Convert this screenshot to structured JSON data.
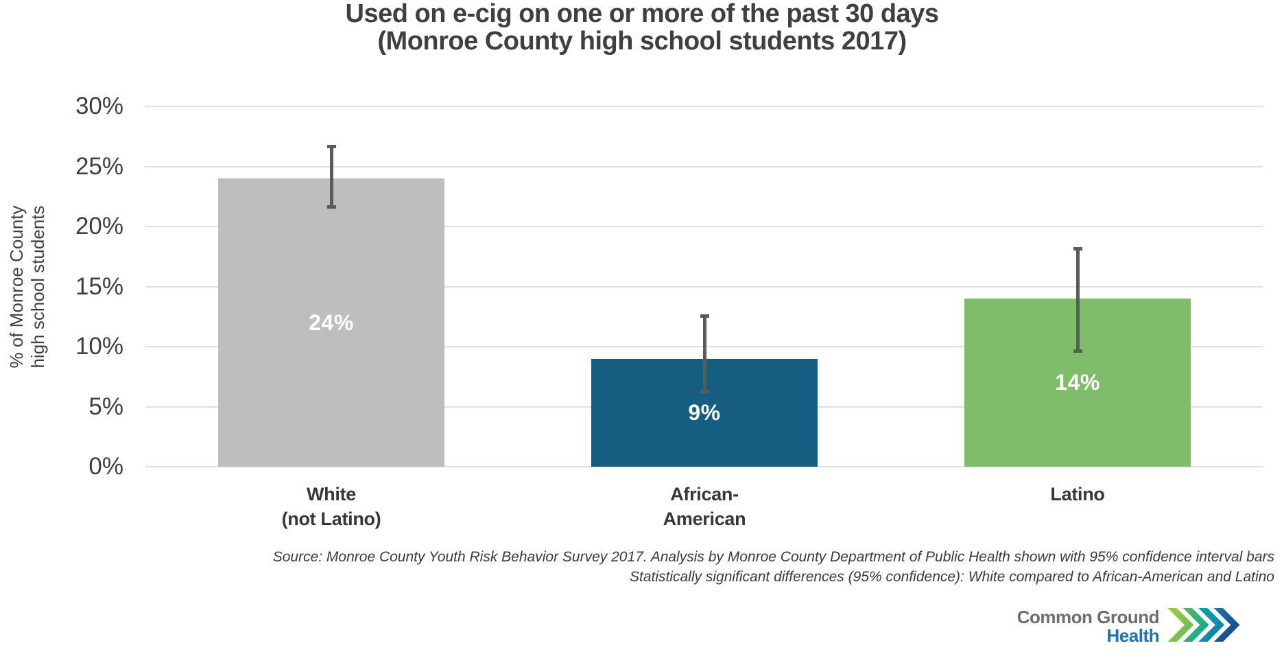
{
  "header": {
    "title_line1": "Used on e-cig on one or more of the past 30 days",
    "title_line2": "(Monroe County high school students 2017)"
  },
  "chart_data": {
    "type": "bar",
    "title": "Used on e-cig on one or more of the past 30 days (Monroe County high school students 2017)",
    "ylabel": "% of Monroe County high school students",
    "ylabel_lines": [
      "% of Monroe County",
      "high school students"
    ],
    "ylim": [
      0,
      30
    ],
    "ytick_step": 5,
    "ytick_suffix": "%",
    "grid": "horizontal",
    "legend": "none",
    "error_bars": "95% confidence interval",
    "error_bar_color": "#595b5d",
    "gridline_color": "#e0e0e0",
    "categories": [
      {
        "label_lines": [
          "White",
          "(not Latino)"
        ],
        "label": "White (not Latino)",
        "value": 24,
        "display": "24%",
        "ci_low": 21.5,
        "ci_high": 26.8,
        "color": "#bcbec0"
      },
      {
        "label_lines": [
          "African-",
          "American"
        ],
        "label": "African-American",
        "value": 9,
        "display": "9%",
        "ci_low": 6.1,
        "ci_high": 12.7,
        "color": "#155d81"
      },
      {
        "label_lines": [
          "Latino"
        ],
        "label": "Latino",
        "value": 14,
        "display": "14%",
        "ci_low": 9.5,
        "ci_high": 18.3,
        "color": "#80bd6a"
      }
    ]
  },
  "footnote": {
    "line1": "Source: Monroe County Youth Risk Behavior Survey 2017.  Analysis by Monroe County Department of Public Health shown with 95% confidence interval bars",
    "line2": "Statistically significant differences (95% confidence): White compared to African-American and Latino"
  },
  "logo": {
    "line1": "Common Ground",
    "line2": "Health",
    "line1_color": "#6d6e71",
    "line2_color": "#1f72ad",
    "chevron_colors": [
      "#a6ce39",
      "#5cb75f",
      "#00a79d",
      "#1b75bb",
      "#163f70"
    ]
  }
}
